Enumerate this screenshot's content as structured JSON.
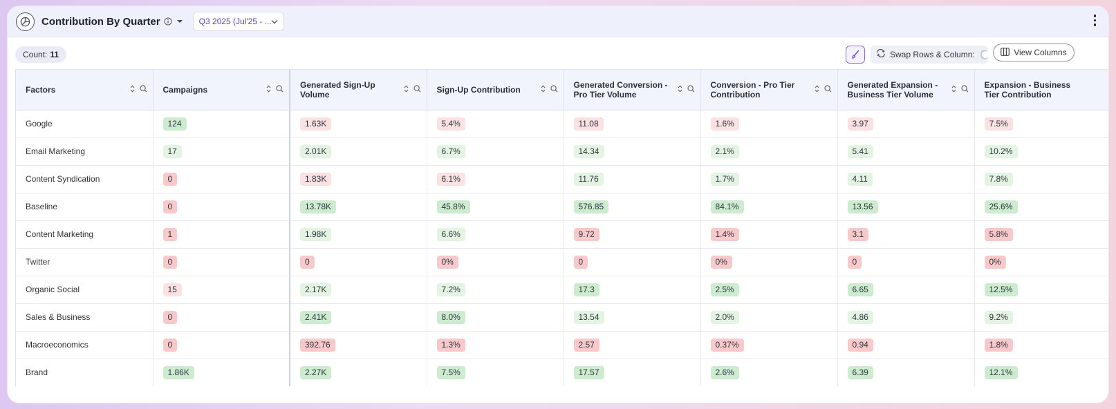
{
  "header": {
    "title": "Contribution By Quarter",
    "date_select": "Q3 2025 (Jul'25 - ..."
  },
  "toolbar": {
    "count_label": "Count:",
    "count_value": "11",
    "swap_label": "Swap Rows & Column:",
    "view_columns_label": "View Columns"
  },
  "table": {
    "columns": [
      "Factors",
      "Campaigns",
      "Generated Sign-Up Volume",
      "Sign-Up Contribution",
      "Generated Conversion - Pro Tier Volume",
      "Conversion - Pro Tier Contribution",
      "Generated Expansion - Business Tier Volume",
      "Expansion - Business Tier Contribution"
    ],
    "rows": [
      {
        "factor": "Google",
        "cells": [
          {
            "v": "124",
            "c": "g"
          },
          {
            "v": "1.63K",
            "c": "lr"
          },
          {
            "v": "5.4%",
            "c": "lr"
          },
          {
            "v": "11.08",
            "c": "lr"
          },
          {
            "v": "1.6%",
            "c": "lr"
          },
          {
            "v": "3.97",
            "c": "lr"
          },
          {
            "v": "7.5%",
            "c": "lr"
          }
        ]
      },
      {
        "factor": "Email Marketing",
        "cells": [
          {
            "v": "17",
            "c": "lg"
          },
          {
            "v": "2.01K",
            "c": "lg"
          },
          {
            "v": "6.7%",
            "c": "lg"
          },
          {
            "v": "14.34",
            "c": "lg"
          },
          {
            "v": "2.1%",
            "c": "lg"
          },
          {
            "v": "5.41",
            "c": "lg"
          },
          {
            "v": "10.2%",
            "c": "lg"
          }
        ]
      },
      {
        "factor": "Content Syndication",
        "cells": [
          {
            "v": "0",
            "c": "r"
          },
          {
            "v": "1.83K",
            "c": "lr"
          },
          {
            "v": "6.1%",
            "c": "lr"
          },
          {
            "v": "11.76",
            "c": "lg"
          },
          {
            "v": "1.7%",
            "c": "lg"
          },
          {
            "v": "4.11",
            "c": "lg"
          },
          {
            "v": "7.8%",
            "c": "lg"
          }
        ]
      },
      {
        "factor": "Baseline",
        "cells": [
          {
            "v": "0",
            "c": "r"
          },
          {
            "v": "13.78K",
            "c": "g"
          },
          {
            "v": "45.8%",
            "c": "g"
          },
          {
            "v": "576.85",
            "c": "g"
          },
          {
            "v": "84.1%",
            "c": "g"
          },
          {
            "v": "13.56",
            "c": "g"
          },
          {
            "v": "25.6%",
            "c": "g"
          }
        ]
      },
      {
        "factor": "Content Marketing",
        "cells": [
          {
            "v": "1",
            "c": "r"
          },
          {
            "v": "1.98K",
            "c": "lg"
          },
          {
            "v": "6.6%",
            "c": "lg"
          },
          {
            "v": "9.72",
            "c": "r"
          },
          {
            "v": "1.4%",
            "c": "r"
          },
          {
            "v": "3.1",
            "c": "r"
          },
          {
            "v": "5.8%",
            "c": "r"
          }
        ]
      },
      {
        "factor": "Twitter",
        "cells": [
          {
            "v": "0",
            "c": "r"
          },
          {
            "v": "0",
            "c": "r"
          },
          {
            "v": "0%",
            "c": "r"
          },
          {
            "v": "0",
            "c": "r"
          },
          {
            "v": "0%",
            "c": "r"
          },
          {
            "v": "0",
            "c": "r"
          },
          {
            "v": "0%",
            "c": "r"
          }
        ]
      },
      {
        "factor": "Organic Social",
        "cells": [
          {
            "v": "15",
            "c": "lr"
          },
          {
            "v": "2.17K",
            "c": "lg"
          },
          {
            "v": "7.2%",
            "c": "lg"
          },
          {
            "v": "17.3",
            "c": "g"
          },
          {
            "v": "2.5%",
            "c": "g"
          },
          {
            "v": "6.65",
            "c": "g"
          },
          {
            "v": "12.5%",
            "c": "g"
          }
        ]
      },
      {
        "factor": "Sales & Business",
        "cells": [
          {
            "v": "0",
            "c": "r"
          },
          {
            "v": "2.41K",
            "c": "g"
          },
          {
            "v": "8.0%",
            "c": "g"
          },
          {
            "v": "13.54",
            "c": "lg"
          },
          {
            "v": "2.0%",
            "c": "lg"
          },
          {
            "v": "4.86",
            "c": "lg"
          },
          {
            "v": "9.2%",
            "c": "lg"
          }
        ]
      },
      {
        "factor": "Macroeconomics",
        "cells": [
          {
            "v": "0",
            "c": "r"
          },
          {
            "v": "392.76",
            "c": "r"
          },
          {
            "v": "1.3%",
            "c": "r"
          },
          {
            "v": "2.57",
            "c": "r"
          },
          {
            "v": "0.37%",
            "c": "r"
          },
          {
            "v": "0.94",
            "c": "r"
          },
          {
            "v": "1.8%",
            "c": "r"
          }
        ]
      },
      {
        "factor": "Brand",
        "cells": [
          {
            "v": "1.86K",
            "c": "g"
          },
          {
            "v": "2.27K",
            "c": "g"
          },
          {
            "v": "7.5%",
            "c": "g"
          },
          {
            "v": "17.57",
            "c": "g"
          },
          {
            "v": "2.6%",
            "c": "g"
          },
          {
            "v": "6.39",
            "c": "g"
          },
          {
            "v": "12.1%",
            "c": "g"
          }
        ]
      }
    ]
  }
}
